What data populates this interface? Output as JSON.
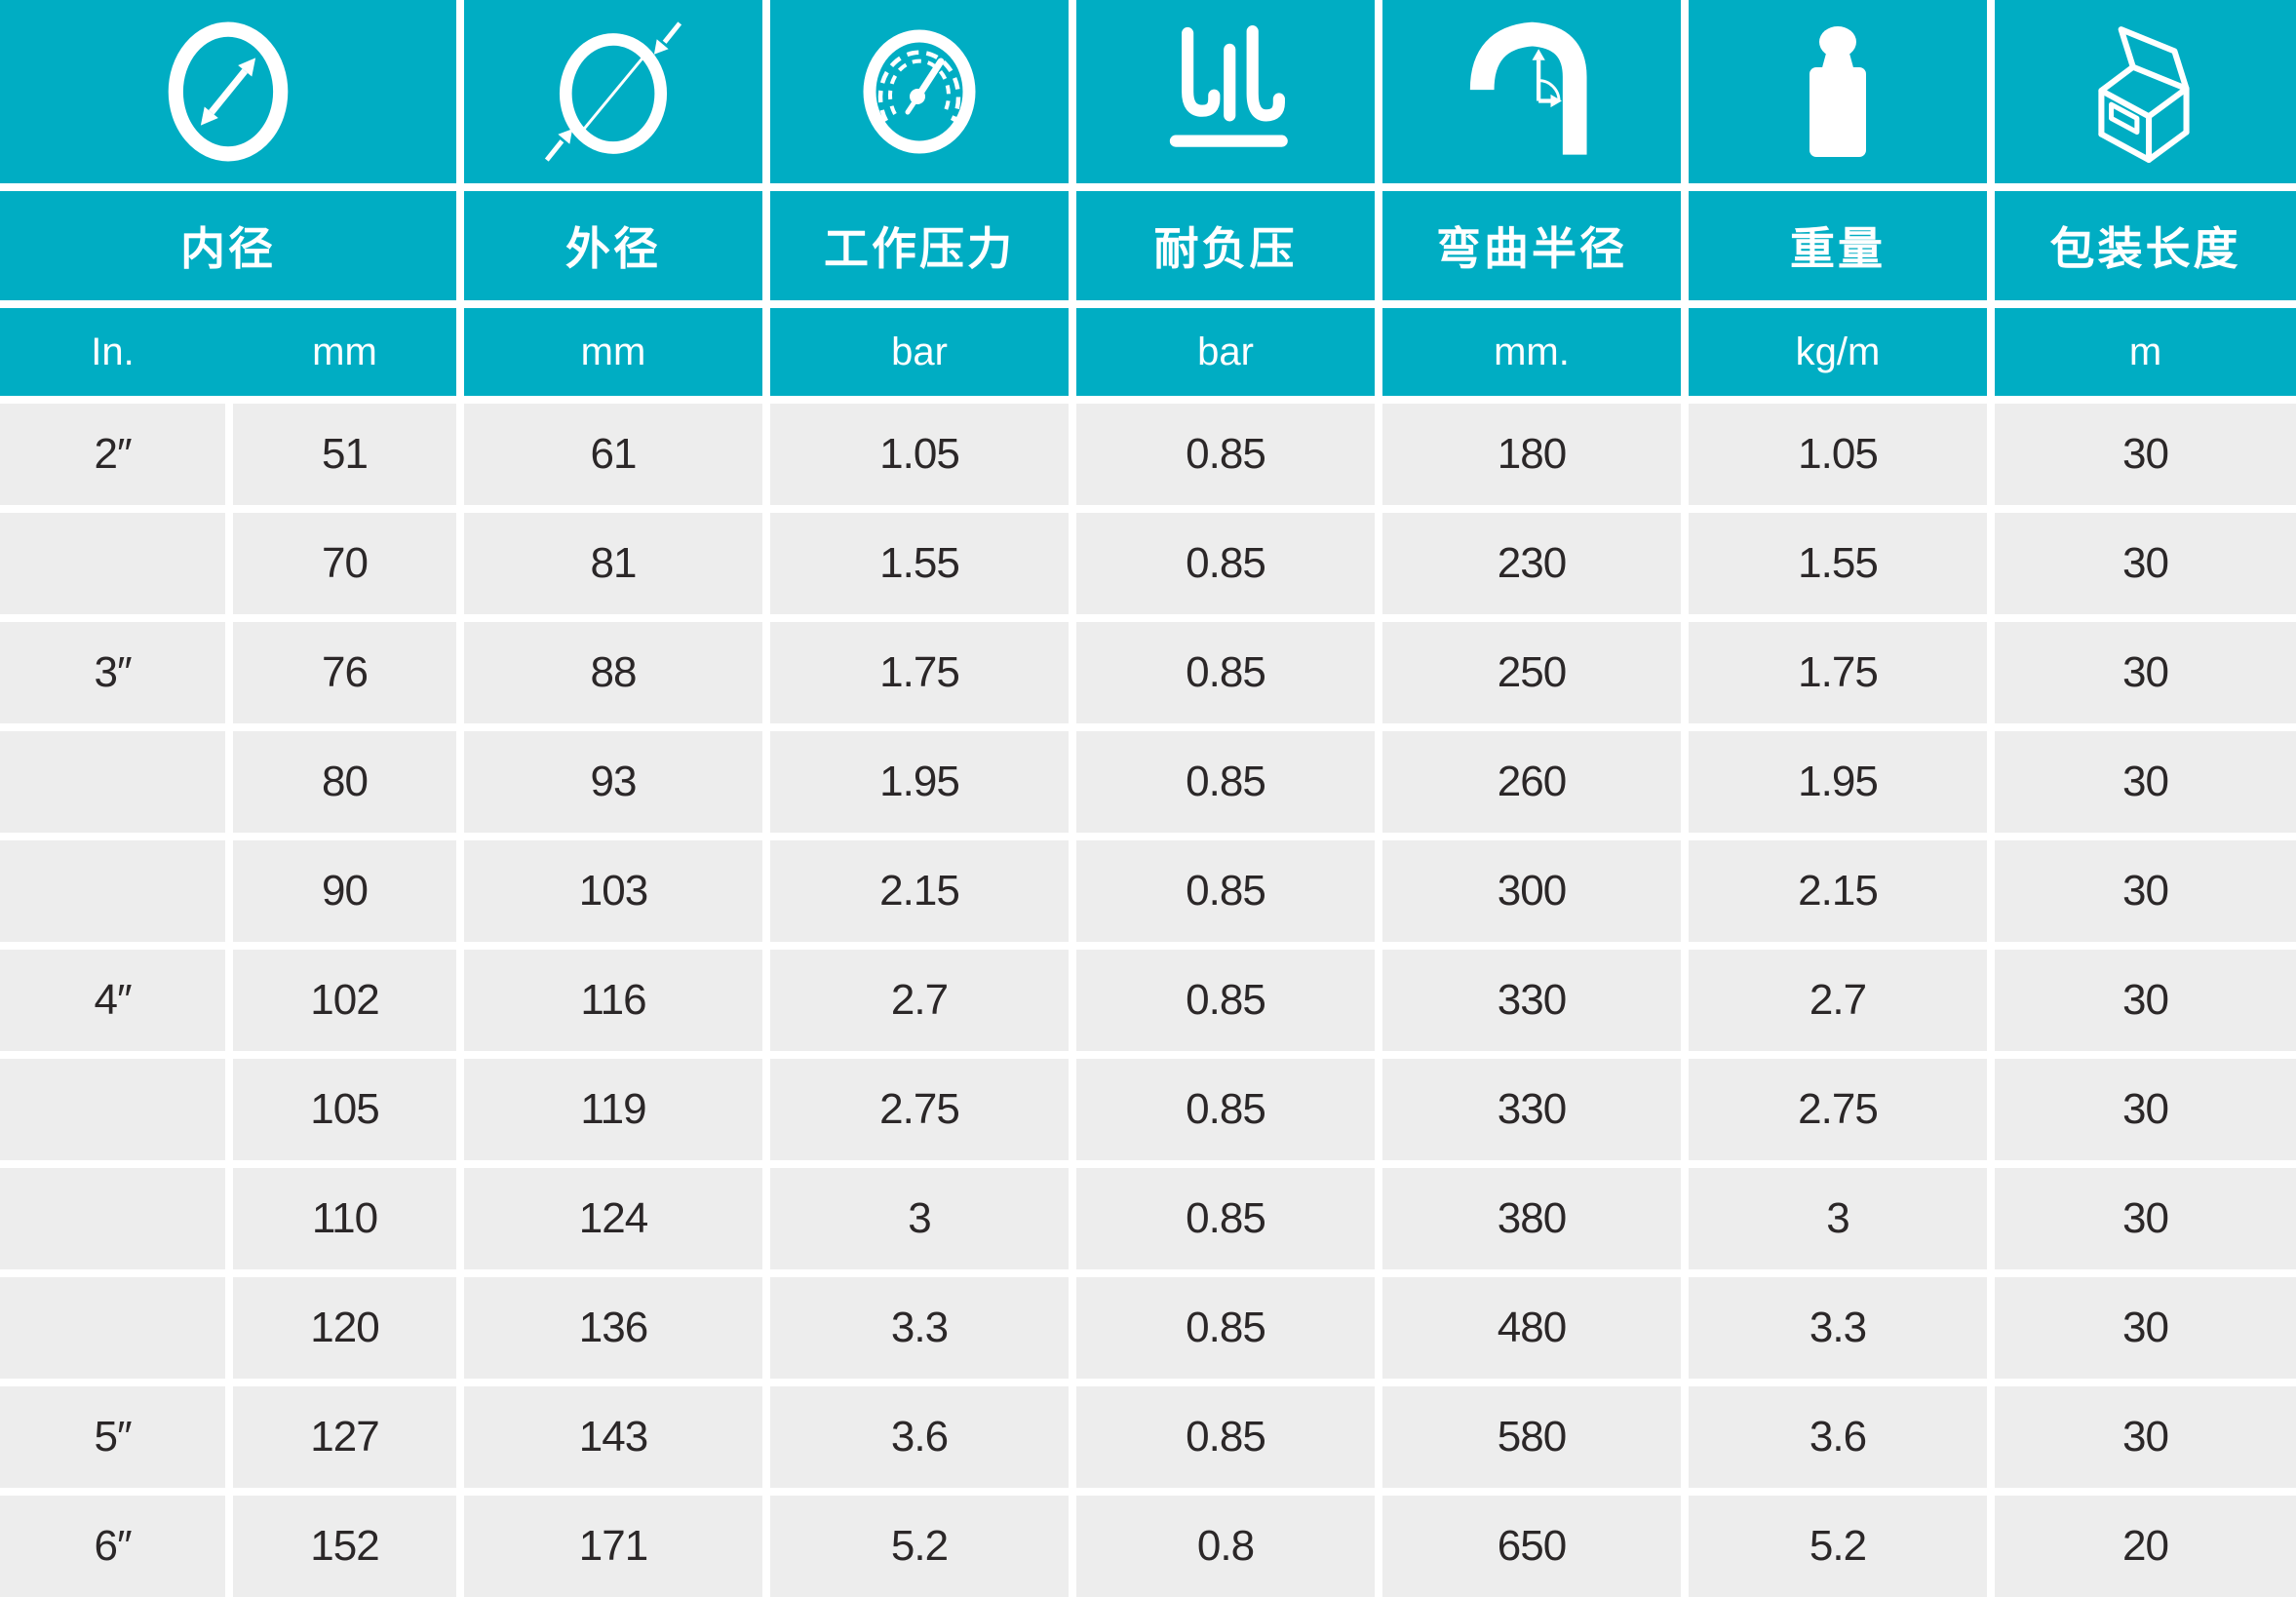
{
  "colors": {
    "teal": "#00ADC3",
    "row_bg": "#EDEDED",
    "gap_white": "#FFFFFF",
    "data_text": "#2B2728",
    "header_text": "#FFFFFF"
  },
  "table": {
    "columns": [
      {
        "id": "inner-diameter",
        "title": "内径",
        "icon": "inner-diameter-icon",
        "units": [
          "In.",
          "mm"
        ]
      },
      {
        "id": "outer-diameter",
        "title": "外径",
        "icon": "outer-diameter-icon",
        "units": [
          "mm"
        ]
      },
      {
        "id": "working-pressure",
        "title": "工作压力",
        "icon": "pressure-gauge-icon",
        "units": [
          "bar"
        ]
      },
      {
        "id": "vacuum-resistance",
        "title": "耐负压",
        "icon": "vacuum-icon",
        "units": [
          "bar"
        ]
      },
      {
        "id": "bend-radius",
        "title": "弯曲半径",
        "icon": "bend-radius-icon",
        "units": [
          "mm."
        ]
      },
      {
        "id": "weight",
        "title": "重量",
        "icon": "weight-icon",
        "units": [
          "kg/m"
        ]
      },
      {
        "id": "package-length",
        "title": "包装长度",
        "icon": "package-box-icon",
        "units": [
          "m"
        ]
      }
    ],
    "rows": [
      [
        "2″",
        "51",
        "61",
        "1.05",
        "0.85",
        "180",
        "1.05",
        "30"
      ],
      [
        "",
        "70",
        "81",
        "1.55",
        "0.85",
        "230",
        "1.55",
        "30"
      ],
      [
        "3″",
        "76",
        "88",
        "1.75",
        "0.85",
        "250",
        "1.75",
        "30"
      ],
      [
        "",
        "80",
        "93",
        "1.95",
        "0.85",
        "260",
        "1.95",
        "30"
      ],
      [
        "",
        "90",
        "103",
        "2.15",
        "0.85",
        "300",
        "2.15",
        "30"
      ],
      [
        "4″",
        "102",
        "116",
        "2.7",
        "0.85",
        "330",
        "2.7",
        "30"
      ],
      [
        "",
        "105",
        "119",
        "2.75",
        "0.85",
        "330",
        "2.75",
        "30"
      ],
      [
        "",
        "110",
        "124",
        "3",
        "0.85",
        "380",
        "3",
        "30"
      ],
      [
        "",
        "120",
        "136",
        "3.3",
        "0.85",
        "480",
        "3.3",
        "30"
      ],
      [
        "5″",
        "127",
        "143",
        "3.6",
        "0.85",
        "580",
        "3.6",
        "30"
      ],
      [
        "6″",
        "152",
        "171",
        "5.2",
        "0.8",
        "650",
        "5.2",
        "20"
      ]
    ]
  }
}
